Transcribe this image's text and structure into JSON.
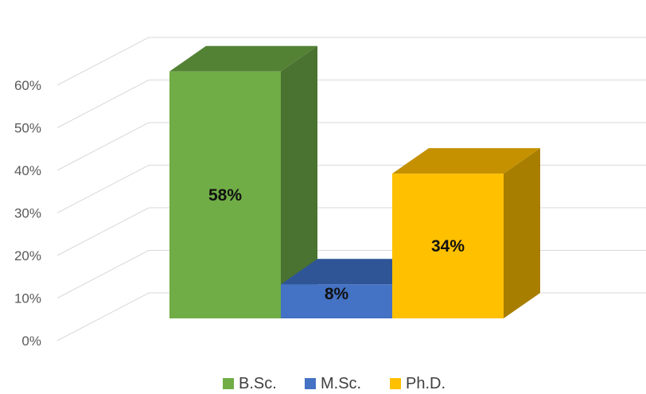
{
  "chart_data": {
    "type": "bar",
    "title": "",
    "xlabel": "",
    "ylabel": "",
    "categories": [
      "B.Sc.",
      "M.Sc.",
      "Ph.D."
    ],
    "values": [
      58,
      8,
      34
    ],
    "data_labels": [
      "58%",
      "8%",
      "34%"
    ],
    "ylim": [
      0,
      60
    ],
    "yticks": [
      0,
      10,
      20,
      30,
      40,
      50,
      60
    ],
    "ytick_labels": [
      "0%",
      "10%",
      "20%",
      "30%",
      "40%",
      "50%",
      "60%"
    ],
    "grid": true,
    "legend_position": "bottom",
    "three_d": true,
    "colors": {
      "B.Sc.": {
        "front": "#70ad47",
        "side": "#4a7230",
        "top": "#548235"
      },
      "M.Sc.": {
        "front": "#4472c4",
        "side": "#2f5597",
        "top": "#2f5597"
      },
      "Ph.D.": {
        "front": "#ffc000",
        "side": "#a87e00",
        "top": "#c59100"
      }
    }
  }
}
